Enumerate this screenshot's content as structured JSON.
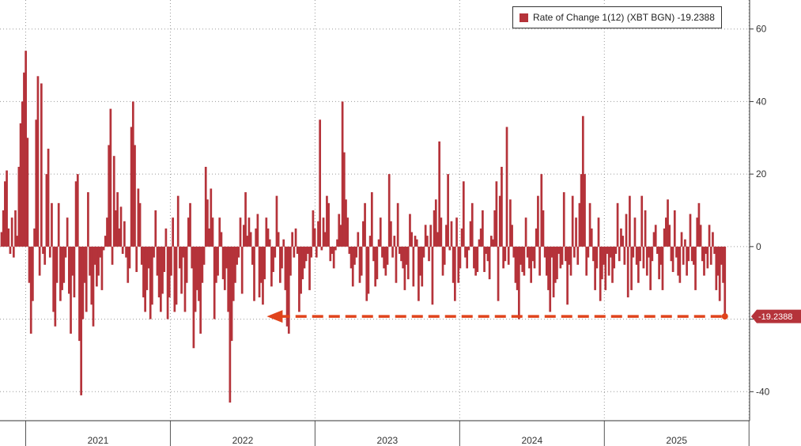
{
  "colors": {
    "bar": "#b5333a",
    "arrow": "#e0441c",
    "callout_bg": "#b5333a",
    "grid": "#9a9a9a"
  },
  "legend": {
    "label": "Rate of Change 1(12) (XBT BGN)  -19.2388"
  },
  "chart_data": {
    "type": "bar",
    "series": [
      {
        "name": "Rate of Change 1(12) (XBT BGN)",
        "last_value": "-19.2388",
        "x_start": "2020-11",
        "x_end": "2025-11",
        "values": [
          4,
          10,
          18,
          21,
          5,
          -2,
          8,
          -3,
          10,
          3,
          22,
          34,
          40,
          48,
          54,
          30,
          -10,
          -24,
          -15,
          5,
          35,
          47,
          -8,
          45,
          -2,
          -5,
          20,
          27,
          -3,
          12,
          -18,
          -22,
          -10,
          12,
          -15,
          -12,
          -10,
          -3,
          8,
          -13,
          -24,
          -8,
          -14,
          18,
          20,
          -26,
          -41,
          -20,
          -10,
          -18,
          15,
          -8,
          -16,
          -22,
          -5,
          -11,
          -8,
          -3,
          -12,
          -1,
          3,
          8,
          28,
          38,
          -5,
          25,
          10,
          15,
          5,
          11,
          -2,
          7,
          -3,
          -10,
          -6,
          33,
          40,
          28,
          -7,
          16,
          12,
          -5,
          -14,
          -18,
          -12,
          -6,
          -20,
          -16,
          -3,
          10,
          -8,
          -14,
          -18,
          -13,
          -7,
          5,
          -20,
          -14,
          -8,
          8,
          -18,
          -16,
          14,
          -6,
          -13,
          -3,
          -18,
          -10,
          8,
          12,
          -6,
          -28,
          -18,
          -12,
          -15,
          -24,
          -10,
          -5,
          22,
          13,
          5,
          16,
          8,
          -20,
          -10,
          -8,
          8,
          4,
          -9,
          -12,
          -6,
          -18,
          -43,
          -26,
          -15,
          -10,
          -5,
          -3,
          8,
          -13,
          6,
          15,
          3,
          8,
          4,
          -5,
          -15,
          5,
          9,
          -14,
          -10,
          -16,
          -9,
          8,
          5,
          2,
          -11,
          -7,
          -3,
          14,
          4,
          -10,
          -6,
          2,
          -12,
          -22,
          -24,
          -8,
          4,
          -3,
          5,
          -2,
          -18,
          -13,
          -9,
          -6,
          -4,
          -2,
          -12,
          -3,
          10,
          5,
          -3,
          7,
          35,
          -1,
          8,
          4,
          14,
          12,
          -4,
          -2,
          -6,
          -1,
          2,
          9,
          6,
          40,
          26,
          13,
          8,
          -2,
          -6,
          -11,
          -5,
          -3,
          4,
          -10,
          -8,
          7,
          12,
          -15,
          -13,
          3,
          15,
          -4,
          -11,
          -9,
          2,
          8,
          -3,
          -6,
          -8,
          -5,
          20,
          7,
          -3,
          3,
          -10,
          12,
          -2,
          -4,
          -6,
          -12,
          -5,
          -9,
          9,
          4,
          -11,
          3,
          2,
          -15,
          -8,
          -11,
          -3,
          6,
          3,
          -4,
          6,
          -16,
          10,
          13,
          4,
          29,
          8,
          -8,
          -5,
          6,
          20,
          -1,
          7,
          -10,
          -15,
          8,
          -10,
          -6,
          5,
          18,
          -3,
          -6,
          -1,
          7,
          12,
          -6,
          -8,
          -7,
          2,
          5,
          10,
          -7,
          -2,
          -4,
          -9,
          3,
          2,
          10,
          18,
          -15,
          14,
          22,
          -6,
          -4,
          33,
          -5,
          13,
          6,
          -3,
          -10,
          -12,
          -20,
          -5,
          -7,
          -8,
          8,
          -3,
          -6,
          -10,
          -4,
          -6,
          5,
          14,
          -8,
          20,
          10,
          -3,
          -8,
          -12,
          -18,
          -3,
          -14,
          -10,
          -9,
          -2,
          -6,
          -5,
          15,
          -4,
          -16,
          -5,
          -8,
          14,
          -3,
          8,
          -5,
          12,
          20,
          36,
          20,
          -8,
          -3,
          12,
          5,
          -4,
          -12,
          -6,
          8,
          -15,
          -9,
          -5,
          -12,
          -2,
          -8,
          -3,
          -10,
          -6,
          -2,
          12,
          -4,
          5,
          3,
          -5,
          9,
          -14,
          14,
          -12,
          -3,
          8,
          -5,
          -10,
          -4,
          14,
          -6,
          10,
          -8,
          -3,
          -12,
          -4,
          4,
          6,
          -2,
          -9,
          -5,
          -12,
          5,
          8,
          13,
          6,
          -4,
          -7,
          10,
          -3,
          -8,
          -10,
          4,
          -5,
          2,
          -8,
          -4,
          9,
          -4,
          -5,
          -12,
          8,
          12,
          6,
          -4,
          -8,
          -2,
          -6,
          6,
          -5,
          4,
          -2,
          -12,
          -8,
          -15,
          -5,
          -10,
          -19.2388
        ],
        "last_point_x": "2025-11"
      }
    ],
    "x_ticks": [
      "2021",
      "2022",
      "2023",
      "2024",
      "2025"
    ],
    "y_ticks": [
      "60",
      "40",
      "20",
      "0",
      "-20",
      "-40"
    ],
    "y_tick_values": [
      60,
      40,
      20,
      0,
      -20,
      -40
    ],
    "ylim": [
      -48,
      68
    ],
    "x_range": [
      "2020-11",
      "2025-12"
    ],
    "grid": true,
    "legend_position": "top-right",
    "annotation": {
      "type": "arrow",
      "label": "-19.2388",
      "value": -19.2388,
      "x_from": "2025-11",
      "x_to": "2022-09"
    }
  }
}
